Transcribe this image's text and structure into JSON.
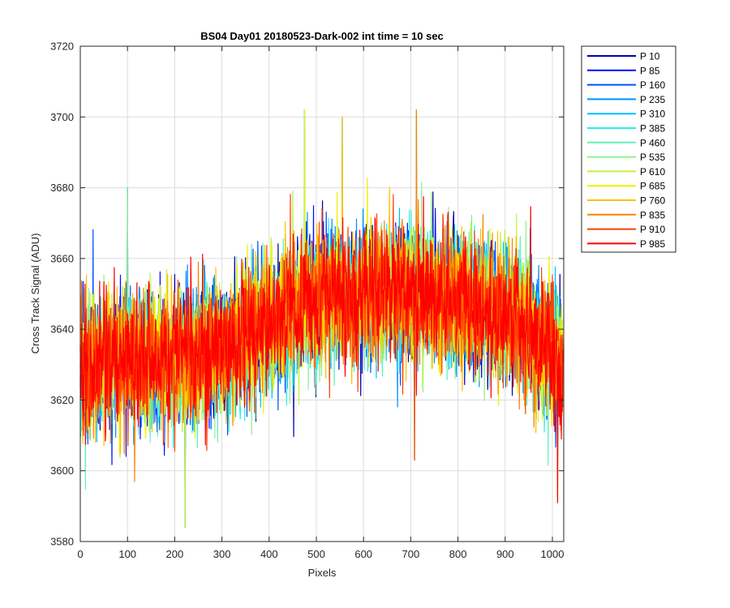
{
  "chart_data": {
    "type": "line",
    "title": "BS04 Day01 20180523-Dark-002 int time = 10 sec",
    "xlabel": "Pixels",
    "ylabel": "Cross Track Signal (ADU)",
    "xlim": [
      0,
      1024
    ],
    "ylim": [
      3580,
      3720
    ],
    "xticks": [
      0,
      100,
      200,
      300,
      400,
      500,
      600,
      700,
      800,
      900,
      1000
    ],
    "yticks": [
      3580,
      3600,
      3620,
      3640,
      3660,
      3680,
      3700,
      3720
    ],
    "grid": true,
    "legend_position": "outside-top-right",
    "points_per_series": 1024,
    "profile": {
      "x": [
        0,
        100,
        200,
        300,
        400,
        500,
        600,
        700,
        800,
        900,
        1000,
        1024
      ],
      "mean": [
        3630,
        3631,
        3632,
        3634,
        3643,
        3648,
        3650,
        3650,
        3648,
        3644,
        3634,
        3630
      ],
      "noise_sd": 9
    },
    "series": [
      {
        "name": "P 10",
        "color": "#0000a4"
      },
      {
        "name": "P 85",
        "color": "#0010ff"
      },
      {
        "name": "P 160",
        "color": "#0050ff"
      },
      {
        "name": "P 235",
        "color": "#0090ff"
      },
      {
        "name": "P 310",
        "color": "#00c0ff"
      },
      {
        "name": "P 385",
        "color": "#20f0f0"
      },
      {
        "name": "P 460",
        "color": "#60f0c0"
      },
      {
        "name": "P 535",
        "color": "#90f090"
      },
      {
        "name": "P 610",
        "color": "#c0f040"
      },
      {
        "name": "P 685",
        "color": "#f0f000"
      },
      {
        "name": "P 760",
        "color": "#ffc000"
      },
      {
        "name": "P 835",
        "color": "#ff8000"
      },
      {
        "name": "P 910",
        "color": "#ff4000"
      },
      {
        "name": "P 985",
        "color": "#ff0000"
      }
    ],
    "notable_points": [
      {
        "x": 100,
        "y": 3680
      },
      {
        "x": 222,
        "y": 3584
      },
      {
        "x": 475,
        "y": 3702
      },
      {
        "x": 555,
        "y": 3700
      },
      {
        "x": 712,
        "y": 3702
      },
      {
        "x": 708,
        "y": 3603
      },
      {
        "x": 1011,
        "y": 3591
      }
    ]
  }
}
